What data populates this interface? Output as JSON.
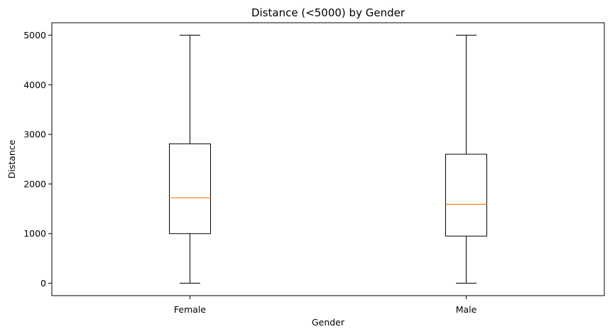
{
  "chart_data": {
    "type": "box",
    "title": "Distance (<5000) by Gender",
    "xlabel": "Gender",
    "ylabel": "Distance",
    "ylim": [
      -250,
      5250
    ],
    "yticks": [
      0,
      1000,
      2000,
      3000,
      4000,
      5000
    ],
    "grid": false,
    "legend": "none",
    "categories": [
      "Female",
      "Male"
    ],
    "boxes": [
      {
        "category": "Female",
        "whisker_low": 0,
        "q1": 1000,
        "median": 1720,
        "q3": 2810,
        "whisker_high": 5000
      },
      {
        "category": "Male",
        "whisker_low": 0,
        "q1": 950,
        "median": 1590,
        "q3": 2600,
        "whisker_high": 5000
      }
    ],
    "colors": {
      "box": "#000000",
      "median": "#ff7f0e",
      "axes": "#000000"
    }
  }
}
